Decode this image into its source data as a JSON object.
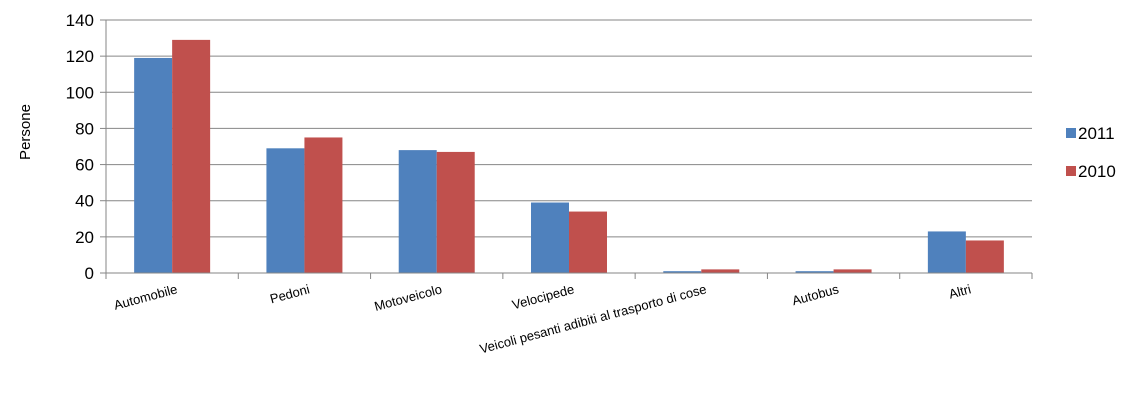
{
  "chart_data": {
    "type": "bar",
    "title": "",
    "xlabel": "",
    "ylabel": "Persone",
    "ylim": [
      0,
      140
    ],
    "yticks": [
      0,
      20,
      40,
      60,
      80,
      100,
      120,
      140
    ],
    "grid": true,
    "legend_position": "right",
    "categories": [
      "Automobile",
      "Pedoni",
      "Motoveicolo",
      "Velocipede",
      "Veicoli pesanti adibiti al trasporto di cose",
      "Autobus",
      "Altri"
    ],
    "series": [
      {
        "name": "2011",
        "color": "#4F81BD",
        "values": [
          119,
          69,
          68,
          39,
          1,
          1,
          23
        ]
      },
      {
        "name": "2010",
        "color": "#C0504D",
        "values": [
          129,
          75,
          67,
          34,
          2,
          2,
          18
        ]
      }
    ]
  }
}
